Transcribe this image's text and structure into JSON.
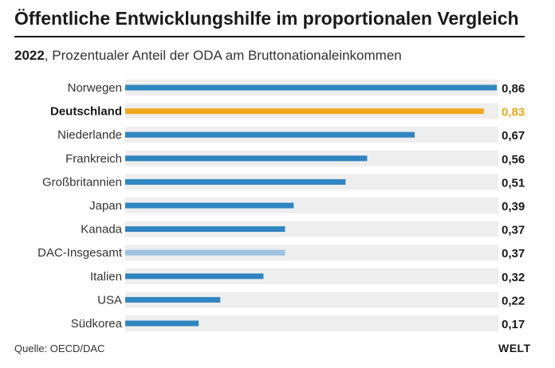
{
  "title": "Öffentliche Entwicklungshilfe im proportionalen Vergleich",
  "subtitle": {
    "year": "2022",
    "text": ", Prozentualer Anteil der ODA am Bruttonationaleinkommen"
  },
  "source": "Quelle: OECD/DAC",
  "brand": "WELT",
  "colors": {
    "default_bar": "#2f85c0",
    "highlight_bar": "#f0a81c",
    "aggregate_bar": "#9fc1e0",
    "track": "#eeeeee"
  },
  "chart_data": {
    "type": "bar",
    "orientation": "horizontal",
    "categories": [
      "Norwegen",
      "Deutschland",
      "Niederlande",
      "Frankreich",
      "Großbritannien",
      "Japan",
      "Kanada",
      "DAC-Insgesamt",
      "Italien",
      "USA",
      "Südkorea"
    ],
    "values": [
      0.86,
      0.83,
      0.67,
      0.56,
      0.51,
      0.39,
      0.37,
      0.37,
      0.32,
      0.22,
      0.17
    ],
    "value_labels": [
      "0,86",
      "0,83",
      "0,67",
      "0,56",
      "0,51",
      "0,39",
      "0,37",
      "0,37",
      "0,32",
      "0,22",
      "0,17"
    ],
    "highlight": "Deutschland",
    "aggregate": "DAC-Insgesamt",
    "xlim": [
      0,
      0.86
    ]
  }
}
